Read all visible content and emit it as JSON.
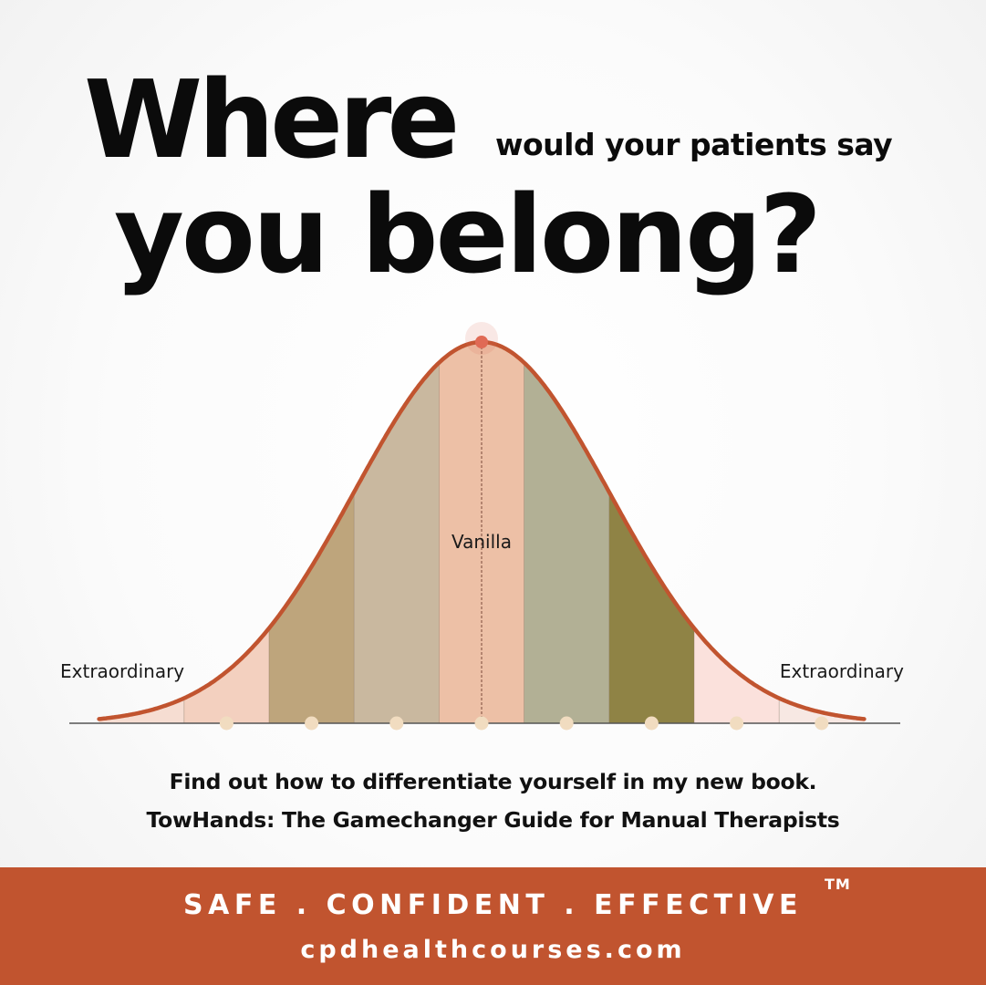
{
  "headline": {
    "line1": "Where",
    "subtitle": "would your patients say",
    "line2": "you belong?"
  },
  "chart_data": {
    "type": "area",
    "curve": "normal-distribution",
    "x": [
      -4.5,
      -3.5,
      -2.5,
      -1.5,
      -0.5,
      0.5,
      1.5,
      2.5,
      3.5,
      4.5
    ],
    "segment_boundaries": [
      -3.5,
      -2.5,
      -1.5,
      -0.5,
      0.5,
      1.5,
      2.5,
      3.5
    ],
    "marker_points": [
      -3.0,
      -2.0,
      -1.0,
      0.0,
      1.0,
      2.0,
      3.0,
      4.0
    ],
    "peak_x": 0.0,
    "segments": [
      {
        "from": -4.5,
        "to": -3.5,
        "color": "#f6ddd2"
      },
      {
        "from": -3.5,
        "to": -2.5,
        "color": "#f3d0bf"
      },
      {
        "from": -2.5,
        "to": -1.5,
        "color": "#bea57c"
      },
      {
        "from": -1.5,
        "to": -0.5,
        "color": "#c9b89f"
      },
      {
        "from": -0.5,
        "to": 0.5,
        "color": "#edc0a6"
      },
      {
        "from": 0.5,
        "to": 1.5,
        "color": "#b2b095"
      },
      {
        "from": 1.5,
        "to": 2.5,
        "color": "#8f8345"
      },
      {
        "from": 2.5,
        "to": 3.5,
        "color": "#fbe1dc"
      },
      {
        "from": 3.5,
        "to": 4.5,
        "color": "#f7e8e3"
      }
    ],
    "labels": {
      "center": "Vanilla",
      "left": "Extraordinary",
      "right": "Extraordinary"
    },
    "colors": {
      "curve": "#c1542f",
      "marker": "#f1dcc0",
      "peak": "#e06a55",
      "baseline": "#555555"
    },
    "grid": false
  },
  "promo": {
    "line1": "Find out how to differentiate yourself in my new book.",
    "line2": "TowHands: The Gamechanger Guide for Manual Therapists"
  },
  "banner": {
    "tagline": "SAFE . CONFIDENT . EFFECTIVE",
    "trademark": "TM",
    "website": "cpdhealthcourses.com",
    "color": "#c1542f"
  }
}
